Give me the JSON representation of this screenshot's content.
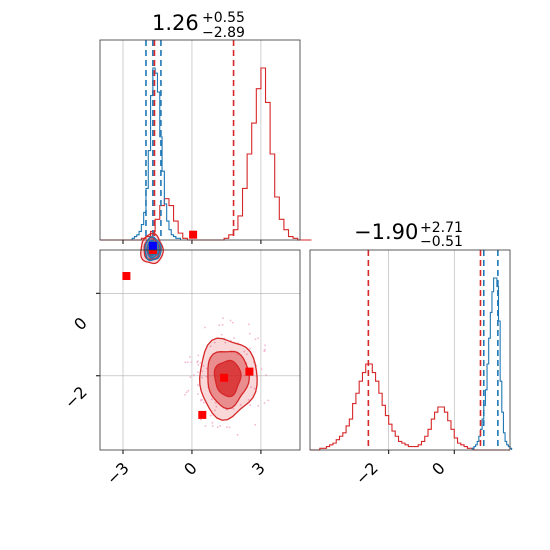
{
  "colors": {
    "red": "#d62728",
    "blue": "#1f77b4",
    "grid": "#b0b0b0",
    "scatter_blue": "#0000ff",
    "scatter_red": "#ff0000",
    "faint_dots": "#f4b6d2"
  },
  "chart_data": [
    {
      "type": "histogram",
      "panel": "top-left marginal",
      "title": {
        "value": "1.26",
        "plus": "+0.55",
        "minus": "−2.89"
      },
      "xlim": [
        -4.0,
        4.7
      ],
      "grid": true,
      "x_tick_values": [
        -3,
        0,
        3
      ],
      "vlines": [
        {
          "color": "blue",
          "x": [
            -2.0,
            -1.7,
            -1.35
          ]
        },
        {
          "color": "red",
          "x": [
            -1.63,
            1.81
          ]
        }
      ],
      "series": [
        {
          "color": "red",
          "step": 0.2,
          "start": -4.0,
          "values": [
            0,
            0,
            0,
            0,
            0,
            0,
            0,
            0,
            0,
            0.01,
            0.02,
            0.05,
            0.12,
            0.2,
            0.24,
            0.2,
            0.11,
            0.04,
            0.01,
            0,
            0,
            0,
            0,
            0,
            0,
            0,
            0,
            0.01,
            0.03,
            0.06,
            0.14,
            0.3,
            0.5,
            0.68,
            0.88,
            1.0,
            0.8,
            0.5,
            0.25,
            0.12,
            0.06,
            0.02,
            0.01,
            0,
            0,
            0
          ]
        },
        {
          "color": "blue",
          "step": 0.1,
          "start": -2.6,
          "values": [
            0.01,
            0.02,
            0.03,
            0.05,
            0.09,
            0.16,
            0.3,
            0.52,
            0.84,
            1.0,
            0.97,
            0.86,
            0.6,
            0.4,
            0.21,
            0.11,
            0.06,
            0.03,
            0.02,
            0.01,
            0.01
          ]
        }
      ]
    },
    {
      "type": "contour-scatter",
      "panel": "bottom-left joint",
      "xlim": [
        -4.0,
        4.7
      ],
      "ylim": [
        -3.8,
        1.05
      ],
      "grid": true,
      "x_tick_labels": [
        "−3",
        "0",
        "3"
      ],
      "x_tick_values": [
        -3,
        0,
        3
      ],
      "y_tick_labels": [
        "0",
        "−2"
      ],
      "y_tick_values": [
        0,
        -2
      ],
      "blobs": [
        {
          "color": "red",
          "center": [
            -1.75,
            1.07
          ],
          "extent": [
            0.48,
            0.36
          ],
          "levels": 3
        },
        {
          "color": "blue",
          "center": [
            -1.7,
            1.07
          ],
          "extent": [
            0.35,
            0.28
          ],
          "levels": 3
        },
        {
          "color": "red",
          "center": [
            1.55,
            -2.05
          ],
          "extent": [
            1.25,
            0.96
          ],
          "levels": 3
        }
      ],
      "red_points": [
        [
          -2.85,
          0.42
        ],
        [
          0.05,
          1.42
        ],
        [
          -1.7,
          1.05
        ],
        [
          1.4,
          -2.05
        ],
        [
          2.5,
          -1.9
        ],
        [
          0.45,
          -2.95
        ]
      ],
      "blue_points": [
        [
          -1.7,
          1.15
        ]
      ]
    },
    {
      "type": "histogram",
      "panel": "bottom-right marginal",
      "title": {
        "value": "−1.90",
        "plus": "+2.71",
        "minus": "−0.51"
      },
      "xlim": [
        -4.4,
        1.7
      ],
      "grid": true,
      "x_tick_labels": [
        "−2",
        "0"
      ],
      "x_tick_values": [
        -2,
        0
      ],
      "vlines": [
        {
          "color": "red",
          "x": [
            -2.62,
            0.8
          ]
        },
        {
          "color": "blue",
          "x": [
            0.9,
            1.33
          ]
        }
      ],
      "series": [
        {
          "color": "red",
          "step": 0.1,
          "start": -4.4,
          "values": [
            0,
            0,
            0,
            0.01,
            0.01,
            0.02,
            0.03,
            0.04,
            0.06,
            0.08,
            0.1,
            0.14,
            0.18,
            0.27,
            0.33,
            0.4,
            0.45,
            0.5,
            0.5,
            0.45,
            0.4,
            0.33,
            0.26,
            0.2,
            0.15,
            0.11,
            0.08,
            0.05,
            0.04,
            0.03,
            0.02,
            0.02,
            0.02,
            0.03,
            0.05,
            0.08,
            0.12,
            0.18,
            0.22,
            0.25,
            0.25,
            0.22,
            0.17,
            0.12,
            0.07,
            0.04,
            0.03,
            0.02,
            0.01,
            0.01,
            0,
            0,
            0,
            0,
            0,
            0,
            0,
            0,
            0,
            0,
            0
          ]
        },
        {
          "color": "blue",
          "step": 0.05,
          "start": 0.55,
          "values": [
            0.01,
            0.02,
            0.03,
            0.05,
            0.08,
            0.12,
            0.18,
            0.26,
            0.35,
            0.5,
            0.65,
            0.8,
            0.92,
            1.0,
            1.0,
            0.95,
            0.75,
            0.4,
            0.22,
            0.1,
            0.05,
            0.03,
            0.02,
            0.01
          ]
        }
      ]
    }
  ]
}
